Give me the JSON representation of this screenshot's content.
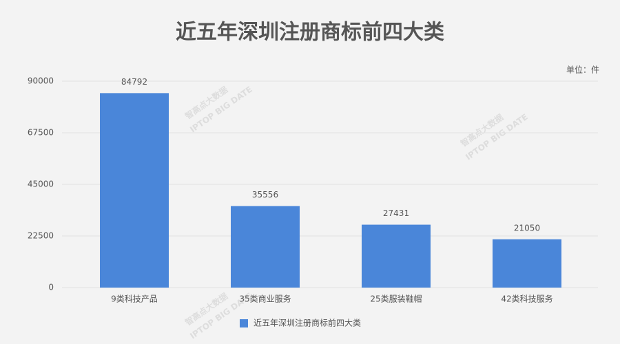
{
  "chart_data": {
    "type": "bar",
    "title": "近五年深圳注册商标前四大类",
    "unit_label": "单位：件",
    "watermark": [
      "智高点大数据",
      "IPTOP BIG DATE"
    ],
    "categories": [
      "9类科技产品",
      "35类商业服务",
      "25类服装鞋帽",
      "42类科技服务"
    ],
    "series": [
      {
        "name": "近五年深圳注册商标前四大类",
        "color": "#4a86d9",
        "values": [
          84792,
          35556,
          27431,
          21050
        ]
      }
    ],
    "ylim": [
      0,
      90000
    ],
    "yticks": [
      0,
      22500,
      45000,
      67500,
      90000
    ],
    "grid": true,
    "legend": "bottom"
  }
}
